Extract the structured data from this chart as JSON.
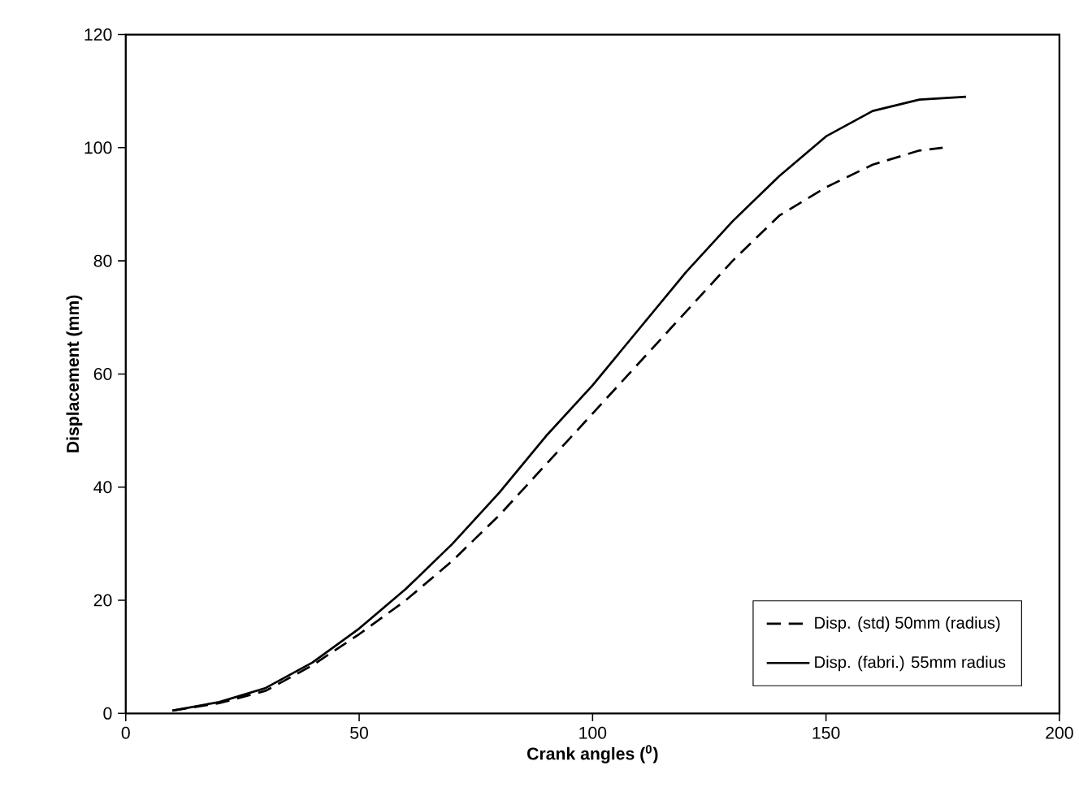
{
  "chart_data": {
    "type": "line",
    "xlabel": "Crank angles ($^{0}$)",
    "ylabel": "Displacement (mm)",
    "xlim": [
      0,
      200
    ],
    "xticks": [
      0,
      50,
      100,
      150,
      200
    ],
    "ylim": [
      0,
      120
    ],
    "yticks": [
      0,
      20,
      40,
      60,
      80,
      100,
      120
    ],
    "grid": false,
    "legend": "bottom right",
    "marker": "none",
    "series": [
      {
        "name": "Disp. (std) 50mm (radius)",
        "color": "#000000",
        "line_style": "dashed",
        "x": [
          10,
          20,
          30,
          40,
          50,
          60,
          70,
          80,
          90,
          100,
          110,
          120,
          130,
          140,
          150,
          160,
          170,
          175
        ],
        "values": [
          0.5,
          1.8,
          4,
          8.5,
          14,
          20,
          27,
          35,
          44,
          53,
          62,
          71,
          80,
          88,
          93,
          97,
          99.5,
          100
        ]
      },
      {
        "name": "Disp. (fabri.) 55mm radius",
        "color": "#000000",
        "line_style": "solid",
        "x": [
          10,
          20,
          30,
          40,
          50,
          60,
          70,
          80,
          90,
          100,
          110,
          120,
          130,
          140,
          150,
          160,
          170,
          180
        ],
        "values": [
          0.5,
          2,
          4.5,
          9,
          15,
          22,
          30,
          39,
          49,
          58,
          68,
          78,
          87,
          95,
          102,
          106.5,
          108.5,
          109
        ]
      }
    ]
  }
}
